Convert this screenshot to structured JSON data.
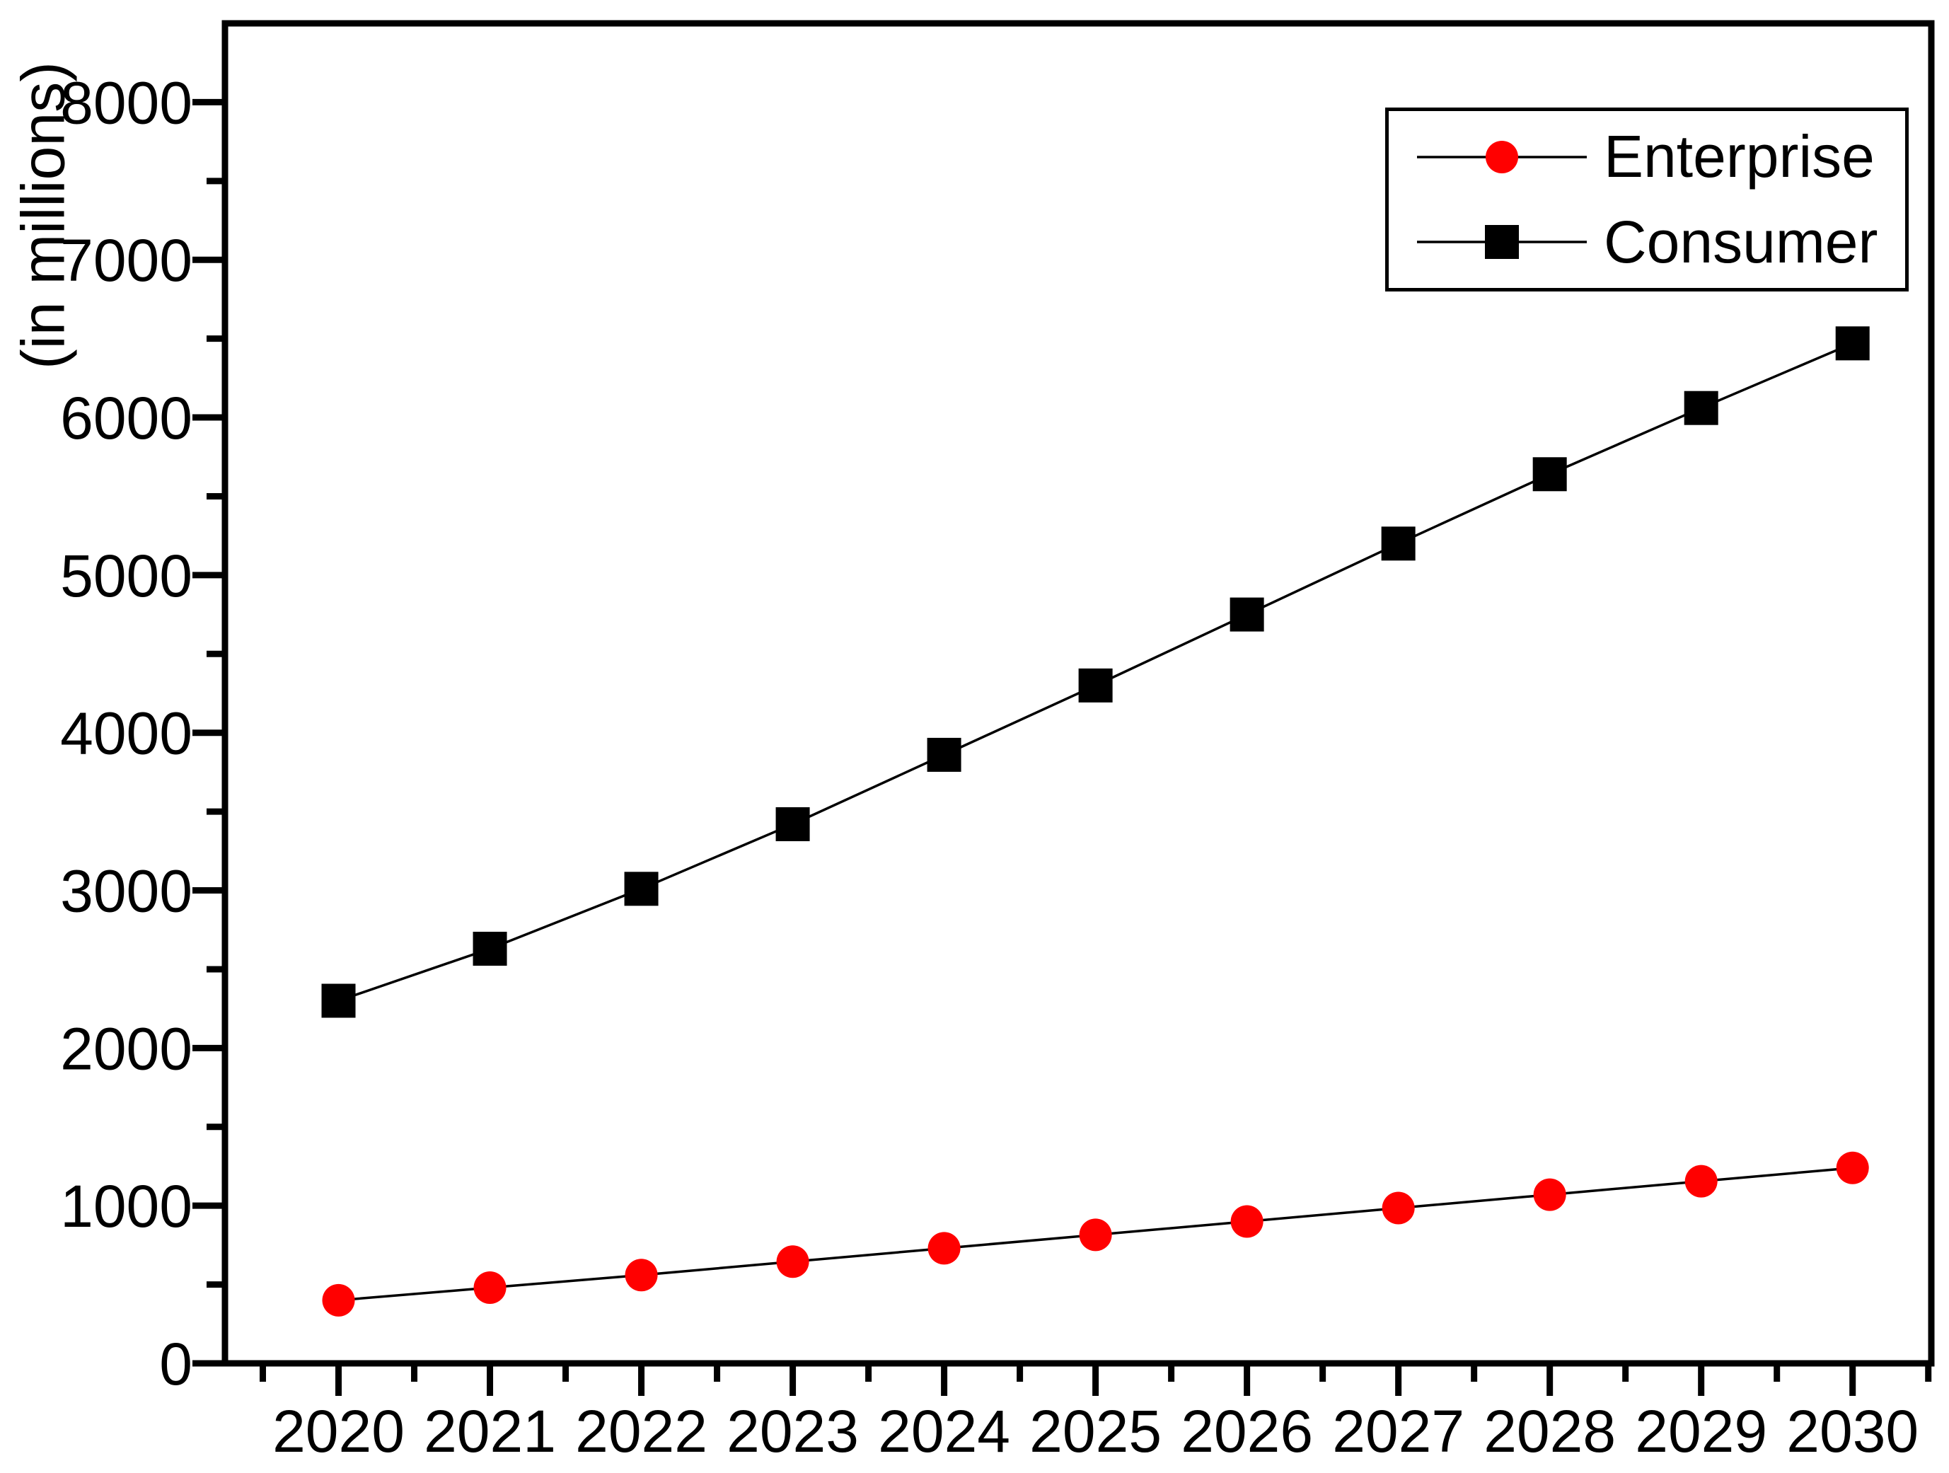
{
  "chart_data": {
    "type": "line",
    "title": "",
    "xlabel": "",
    "ylabel": "(in millions)",
    "categories": [
      2020,
      2021,
      2022,
      2023,
      2024,
      2025,
      2026,
      2027,
      2028,
      2029,
      2030
    ],
    "series": [
      {
        "name": "Enterprise",
        "marker": "circle",
        "marker_color": "#ff0000",
        "line_color": "#000000",
        "values": [
          400,
          480,
          560,
          645,
          730,
          815,
          900,
          985,
          1070,
          1155,
          1240
        ]
      },
      {
        "name": "Consumer",
        "marker": "square",
        "marker_color": "#000000",
        "line_color": "#000000",
        "values": [
          2300,
          2630,
          3010,
          3420,
          3860,
          4300,
          4750,
          5200,
          5640,
          6060,
          6470
        ]
      }
    ],
    "xlim": [
      2019.25,
      2030.52
    ],
    "ylim": [
      0,
      8500
    ],
    "x_major_ticks": [
      2020,
      2021,
      2022,
      2023,
      2024,
      2025,
      2026,
      2027,
      2028,
      2029,
      2030
    ],
    "x_minor_step": 0.5,
    "y_major_step": 1000,
    "y_minor_step": 500,
    "grid": false,
    "legend_position": "top-right",
    "background": "#ffffff",
    "axis_color": "#000000"
  }
}
